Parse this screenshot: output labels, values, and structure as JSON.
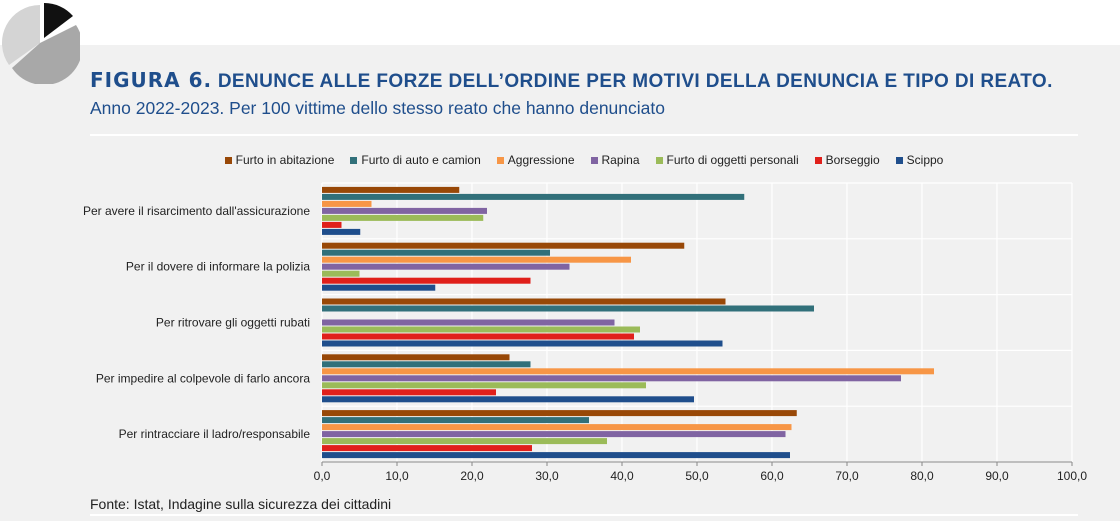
{
  "header": {
    "figure_label": "FIGURA 6.",
    "title": "DENUNCE ALLE FORZE DELL’ORDINE PER MOTIVI DELLA DENUNCIA E TIPO DI REATO.",
    "subtitle": "Anno 2022-2023. Per 100 vittime dello stesso reato che hanno denunciato"
  },
  "source": "Fonte: Istat, Indagine sulla sicurezza dei cittadini",
  "chart_data": {
    "type": "bar",
    "orientation": "horizontal",
    "grid": true,
    "legend_position": "top",
    "xlim": [
      0,
      100
    ],
    "x_ticks": [
      "0,0",
      "10,0",
      "20,0",
      "30,0",
      "40,0",
      "50,0",
      "60,0",
      "70,0",
      "80,0",
      "90,0",
      "100,0"
    ],
    "categories": [
      "Per avere il risarcimento dall'assicurazione",
      "Per il dovere di informare la polizia",
      "Per ritrovare gli oggetti rubati",
      "Per impedire al colpevole di farlo ancora",
      "Per rintracciare il ladro/responsabile"
    ],
    "series": [
      {
        "name": "Furto in abitazione",
        "color": "#984807",
        "values": [
          18.3,
          48.3,
          53.8,
          25.0,
          63.3
        ]
      },
      {
        "name": "Furto di auto e camion",
        "color": "#31707a",
        "values": [
          56.3,
          30.4,
          65.6,
          27.8,
          35.6
        ]
      },
      {
        "name": "Aggressione",
        "color": "#f79646",
        "values": [
          6.6,
          41.2,
          null,
          81.6,
          62.6
        ]
      },
      {
        "name": "Rapina",
        "color": "#8064a2",
        "values": [
          22.0,
          33.0,
          39.0,
          77.2,
          61.8
        ]
      },
      {
        "name": "Furto di oggetti personali",
        "color": "#9bbb59",
        "values": [
          21.5,
          5.0,
          42.4,
          43.2,
          38.0
        ]
      },
      {
        "name": "Borseggio",
        "color": "#e0201b",
        "values": [
          2.6,
          27.8,
          41.6,
          23.2,
          28.0
        ]
      },
      {
        "name": "Scippo",
        "color": "#1f4e8c",
        "values": [
          5.1,
          15.1,
          53.4,
          49.6,
          62.4
        ]
      }
    ]
  }
}
